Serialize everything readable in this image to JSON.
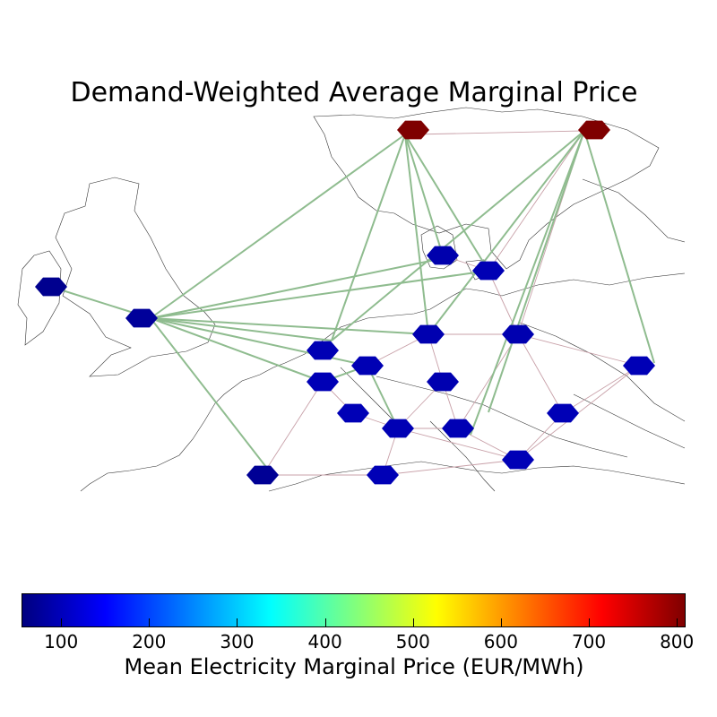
{
  "title": "Demand-Weighted Average Marginal Price",
  "colorbar": {
    "label": "Mean Electricity Marginal Price (EUR/MWh)",
    "min": 55,
    "max": 810,
    "ticks": [
      "100",
      "200",
      "300",
      "400",
      "500",
      "600",
      "700",
      "800"
    ],
    "colormap": "jet"
  },
  "colors": {
    "hvdc_link": "#8fbc8f",
    "ac_line": "#c8a0a8",
    "coastline": "#333333"
  },
  "nodes": [
    {
      "id": "NO-north",
      "price": 790,
      "color": "#7f0000"
    },
    {
      "id": "FI",
      "price": 800,
      "color": "#7f0000"
    },
    {
      "id": "IE",
      "price": 85,
      "color": "#00008f"
    },
    {
      "id": "GB",
      "price": 90,
      "color": "#00009a"
    },
    {
      "id": "DK-west",
      "price": 105,
      "color": "#0000ad"
    },
    {
      "id": "DK-east",
      "price": 110,
      "color": "#0000b4"
    },
    {
      "id": "DE-north",
      "price": 108,
      "color": "#0000b0"
    },
    {
      "id": "PL",
      "price": 108,
      "color": "#0000b0"
    },
    {
      "id": "NL",
      "price": 110,
      "color": "#0000b4"
    },
    {
      "id": "BE",
      "price": 112,
      "color": "#0000b6"
    },
    {
      "id": "LU",
      "price": 110,
      "color": "#0000b4"
    },
    {
      "id": "DE-south",
      "price": 108,
      "color": "#0000b0"
    },
    {
      "id": "UA",
      "price": 112,
      "color": "#0000b6"
    },
    {
      "id": "FR-north",
      "price": 112,
      "color": "#0000b6"
    },
    {
      "id": "CH",
      "price": 110,
      "color": "#0000b4"
    },
    {
      "id": "AT",
      "price": 110,
      "color": "#0000b4"
    },
    {
      "id": "HU",
      "price": 112,
      "color": "#0000b6"
    },
    {
      "id": "ES",
      "price": 88,
      "color": "#000095"
    },
    {
      "id": "IT",
      "price": 112,
      "color": "#0000b6"
    },
    {
      "id": "BA",
      "price": 112,
      "color": "#0000b6"
    }
  ]
}
